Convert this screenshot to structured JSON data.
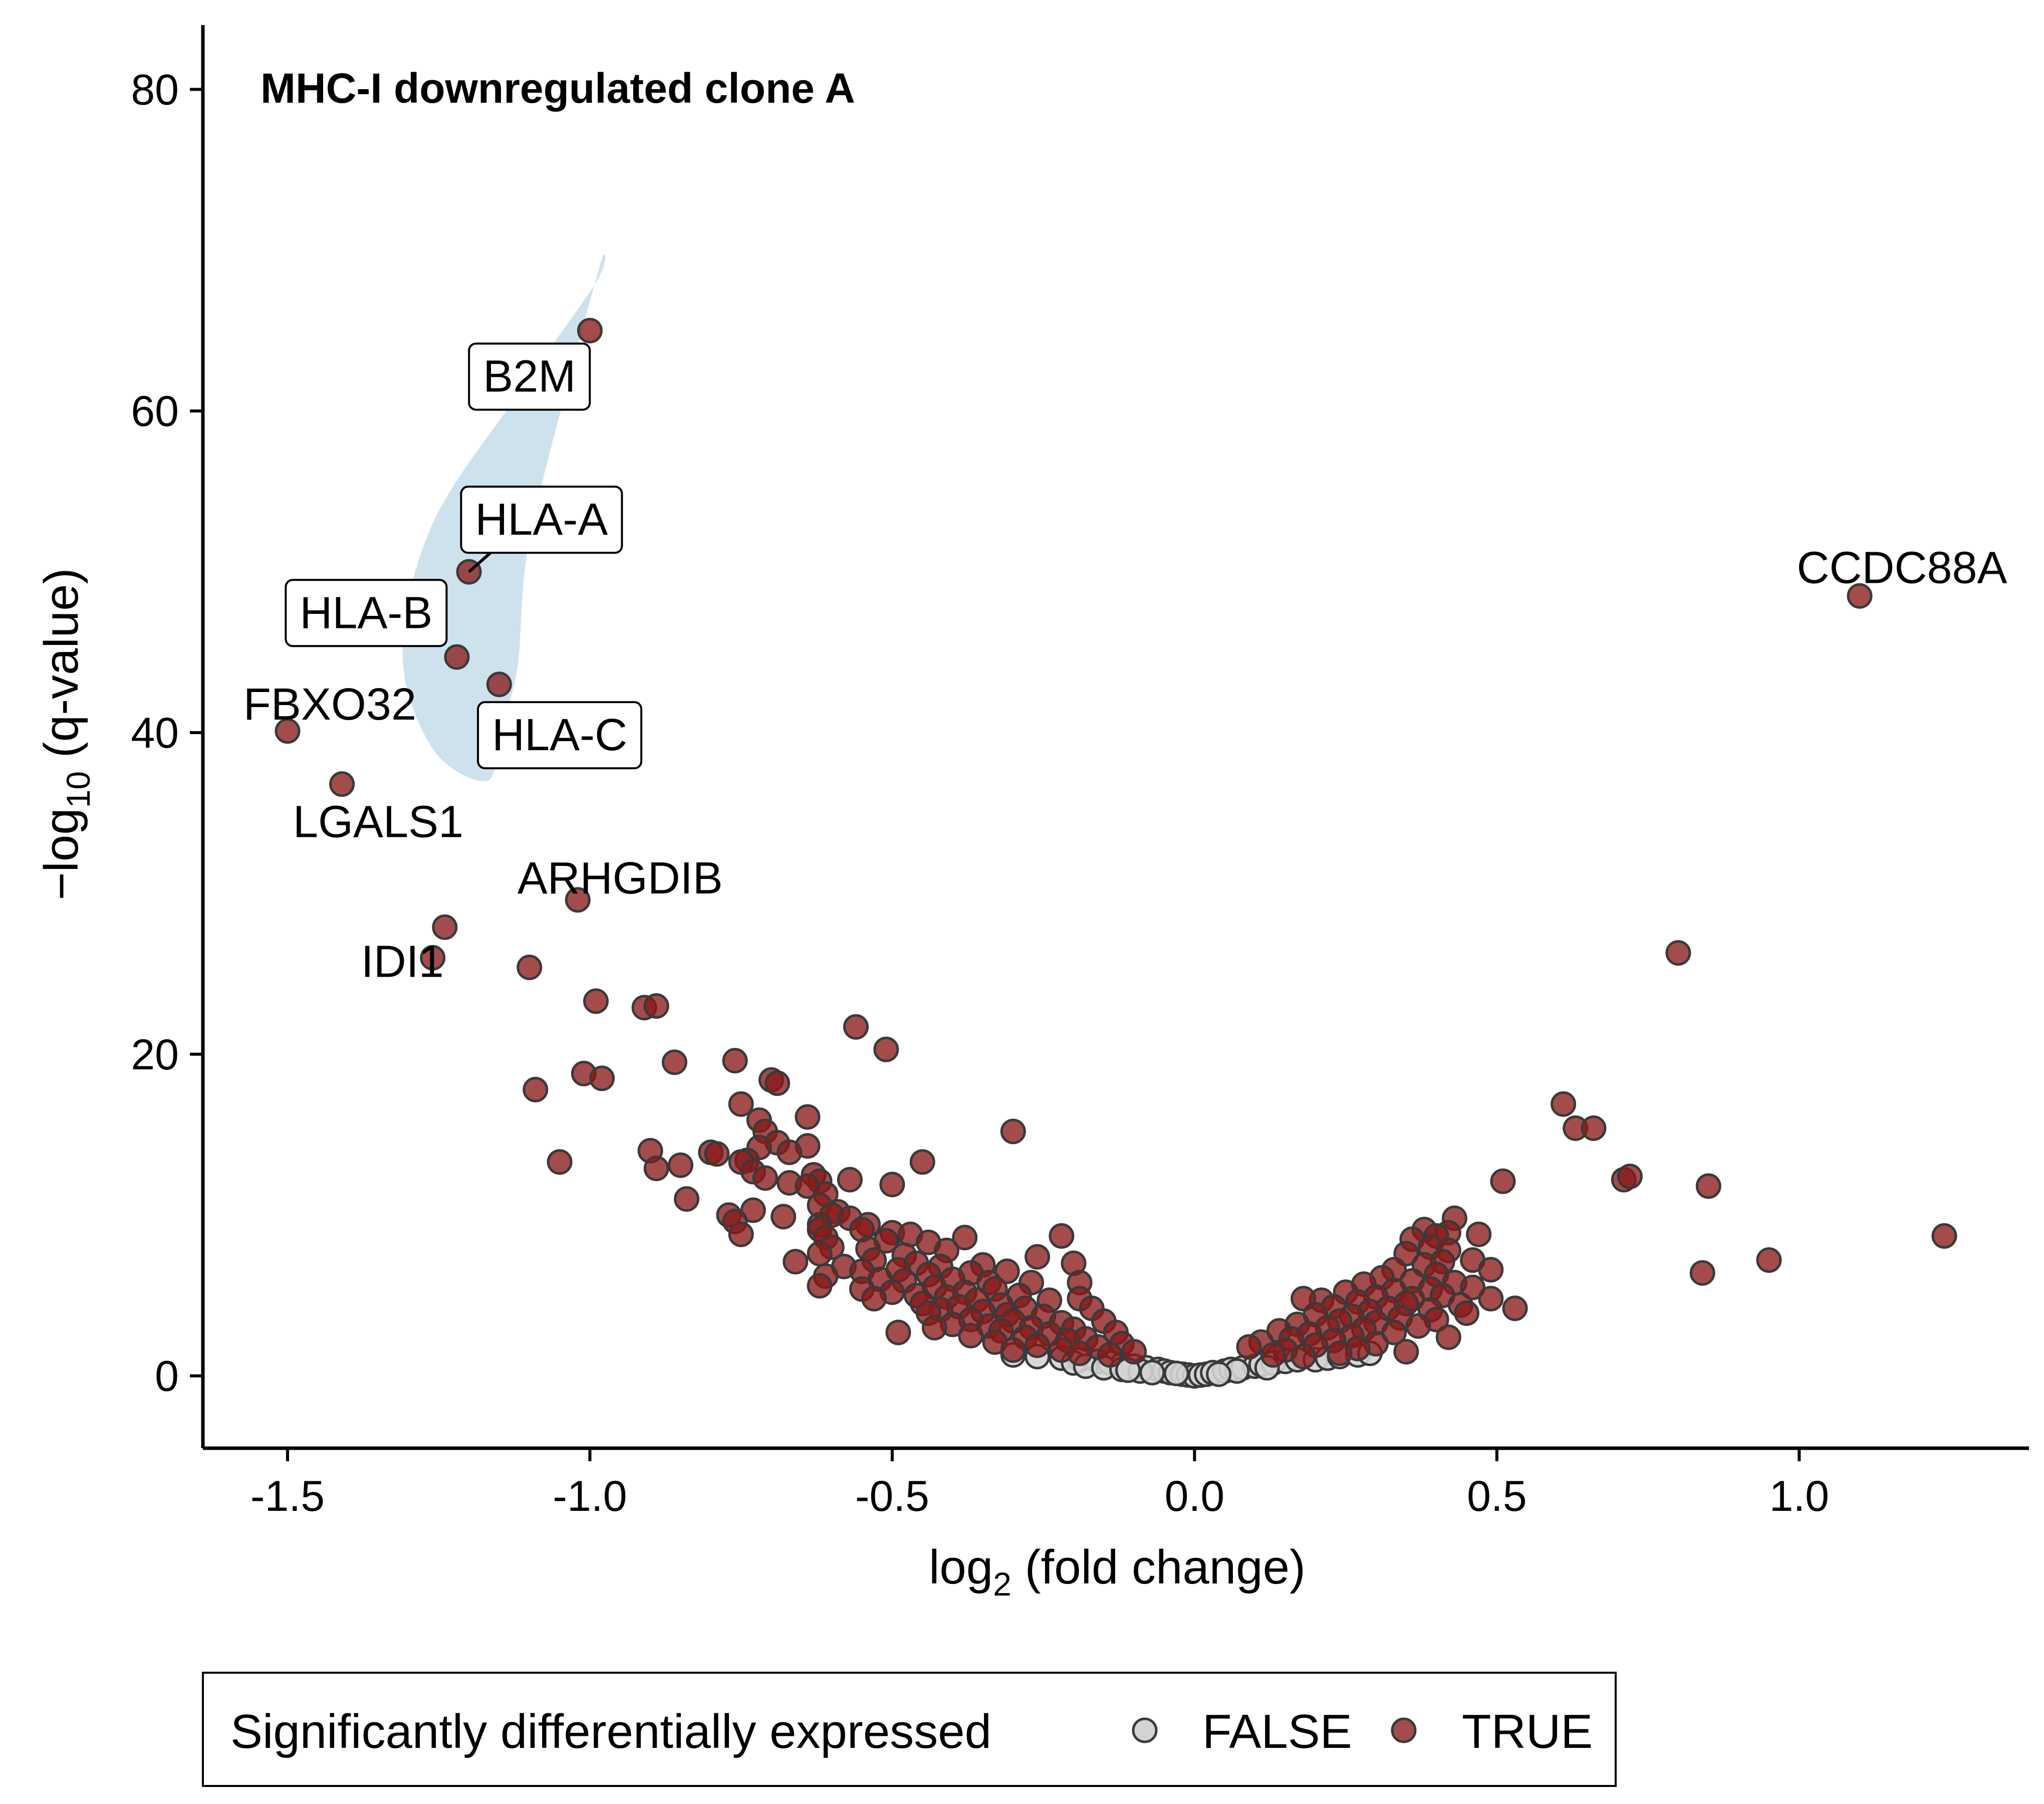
{
  "chart_data": {
    "type": "scatter",
    "title": "MHC-I downregulated clone A",
    "xlabel_parts": {
      "base": "log",
      "sub": "2",
      "rest": " (fold change)"
    },
    "ylabel_parts": {
      "prefix": "−log",
      "sub": "10",
      "rest": " (q-value)"
    },
    "xlim": [
      -1.64,
      1.38
    ],
    "ylim": [
      -4.5,
      84
    ],
    "xticks": [
      -1.5,
      -1.0,
      -0.5,
      0.0,
      0.5,
      1.0
    ],
    "xtick_labels": [
      "-1.5",
      "-1.0",
      "-0.5",
      "0.0",
      "0.5",
      "1.0"
    ],
    "yticks": [
      0,
      20,
      40,
      60,
      80
    ],
    "ytick_labels": [
      "0",
      "20",
      "40",
      "60",
      "80"
    ],
    "grid": false,
    "colors": {
      "TRUE": "#8b1a1a",
      "FALSE": "#d4d4d4",
      "outline": "#3a3a3a",
      "highlight": "#c6ddeb"
    },
    "legend": {
      "position": "bottom",
      "title": "Significantly differentially expressed",
      "entries": [
        "FALSE",
        "TRUE"
      ]
    },
    "highlight_region": [
      [
        -1.17,
        37
      ],
      [
        -1.26,
        39
      ],
      [
        -1.31,
        45
      ],
      [
        -1.26,
        53
      ],
      [
        -1.12,
        61
      ],
      [
        -0.99,
        68
      ],
      [
        -0.98,
        69.5
      ],
      [
        -1.02,
        64
      ],
      [
        -1.1,
        52
      ],
      [
        -1.12,
        44
      ],
      [
        -1.15,
        40
      ]
    ],
    "labeled_points": [
      {
        "gene": "B2M",
        "x": -1.0,
        "y": 65.0,
        "boxed": true,
        "lx": -1.1,
        "ly": 62.2
      },
      {
        "gene": "HLA-A",
        "x": -1.2,
        "y": 50.0,
        "boxed": true,
        "lx": -1.08,
        "ly": 53.3
      },
      {
        "gene": "HLA-B",
        "x": -1.22,
        "y": 44.7,
        "boxed": true,
        "lx": -1.37,
        "ly": 47.5
      },
      {
        "gene": "HLA-C",
        "x": -1.15,
        "y": 43.0,
        "boxed": true,
        "lx": -1.05,
        "ly": 39.9
      },
      {
        "gene": "CCDC88A",
        "x": 1.1,
        "y": 48.5,
        "boxed": false,
        "lx": 1.17,
        "ly": 50.3
      },
      {
        "gene": "FBXO32",
        "x": -1.5,
        "y": 40.1,
        "boxed": false,
        "lx": -1.43,
        "ly": 41.8
      },
      {
        "gene": "LGALS1",
        "x": -1.41,
        "y": 36.8,
        "boxed": false,
        "lx": -1.35,
        "ly": 34.5
      },
      {
        "gene": "ARHGDIB",
        "x": -1.02,
        "y": 29.6,
        "boxed": false,
        "lx": -0.95,
        "ly": 31.0
      },
      {
        "gene": "IDI1",
        "x": -1.26,
        "y": 26.0,
        "boxed": false,
        "lx": -1.31,
        "ly": 25.8
      }
    ],
    "series": [
      {
        "name": "TRUE",
        "points": [
          [
            -1.24,
            27.9
          ],
          [
            -1.1,
            25.4
          ],
          [
            -0.99,
            23.3
          ],
          [
            -0.91,
            22.9
          ],
          [
            -0.89,
            23.0
          ],
          [
            -0.56,
            21.7
          ],
          [
            -0.51,
            20.3
          ],
          [
            -0.76,
            19.6
          ],
          [
            -0.86,
            19.5
          ],
          [
            -1.01,
            18.8
          ],
          [
            -0.98,
            18.5
          ],
          [
            -0.7,
            18.4
          ],
          [
            -1.09,
            17.8
          ],
          [
            -0.69,
            18.2
          ],
          [
            -0.75,
            16.9
          ],
          [
            -0.64,
            16.1
          ],
          [
            -0.72,
            15.9
          ],
          [
            -0.71,
            15.2
          ],
          [
            -0.3,
            15.2
          ],
          [
            -0.69,
            14.5
          ],
          [
            -0.72,
            14.2
          ],
          [
            -0.64,
            14.3
          ],
          [
            -0.9,
            14.0
          ],
          [
            -0.67,
            13.9
          ],
          [
            -0.8,
            13.9
          ],
          [
            -0.79,
            13.8
          ],
          [
            -0.74,
            13.4
          ],
          [
            -1.05,
            13.3
          ],
          [
            -0.45,
            13.3
          ],
          [
            -0.75,
            13.3
          ],
          [
            -0.85,
            13.1
          ],
          [
            -0.89,
            12.9
          ],
          [
            -0.73,
            12.7
          ],
          [
            -0.63,
            12.5
          ],
          [
            -0.71,
            12.3
          ],
          [
            -0.57,
            12.2
          ],
          [
            -0.62,
            12.1
          ],
          [
            -0.67,
            12.0
          ],
          [
            -0.5,
            11.9
          ],
          [
            -0.64,
            11.8
          ],
          [
            -0.61,
            11.3
          ],
          [
            -0.84,
            11.0
          ],
          [
            -0.62,
            10.6
          ],
          [
            -0.73,
            10.3
          ],
          [
            -0.59,
            10.2
          ],
          [
            -0.6,
            10.0
          ],
          [
            -0.68,
            9.9
          ],
          [
            -0.77,
            10.0
          ],
          [
            -0.57,
            9.8
          ],
          [
            -0.62,
            9.4
          ],
          [
            -0.54,
            9.4
          ],
          [
            -0.76,
            9.6
          ],
          [
            -0.55,
            9.1
          ],
          [
            -0.62,
            9.1
          ],
          [
            -0.5,
            8.9
          ],
          [
            -0.47,
            8.8
          ],
          [
            -0.75,
            8.8
          ],
          [
            -0.61,
            8.6
          ],
          [
            -0.38,
            8.6
          ],
          [
            -0.22,
            8.7
          ],
          [
            -0.51,
            8.4
          ],
          [
            -0.44,
            8.3
          ],
          [
            -0.6,
            8.0
          ],
          [
            -0.54,
            7.9
          ],
          [
            -0.41,
            7.8
          ],
          [
            -0.62,
            7.6
          ],
          [
            -0.48,
            7.5
          ],
          [
            -0.26,
            7.4
          ],
          [
            -0.66,
            7.1
          ],
          [
            -0.53,
            7.2
          ],
          [
            -0.46,
            7.0
          ],
          [
            -0.2,
            7.0
          ],
          [
            -0.35,
            6.9
          ],
          [
            -0.42,
            6.8
          ],
          [
            -0.58,
            6.8
          ],
          [
            -0.49,
            6.6
          ],
          [
            -0.55,
            6.5
          ],
          [
            -0.31,
            6.5
          ],
          [
            -0.37,
            6.4
          ],
          [
            -0.44,
            6.3
          ],
          [
            -0.61,
            6.2
          ],
          [
            -0.52,
            6.0
          ],
          [
            -0.4,
            6.0
          ],
          [
            -0.48,
            5.9
          ],
          [
            -0.34,
            5.8
          ],
          [
            -0.27,
            5.8
          ],
          [
            -0.19,
            5.8
          ],
          [
            -0.62,
            5.6
          ],
          [
            -0.43,
            5.5
          ],
          [
            -0.55,
            5.4
          ],
          [
            -0.33,
            5.4
          ],
          [
            -0.5,
            5.2
          ],
          [
            -0.38,
            5.2
          ],
          [
            -0.46,
            5.0
          ],
          [
            -0.29,
            5.0
          ],
          [
            -0.41,
            4.9
          ],
          [
            -0.53,
            4.8
          ],
          [
            -0.36,
            4.7
          ],
          [
            -0.24,
            4.7
          ],
          [
            -0.19,
            4.8
          ],
          [
            -0.45,
            4.5
          ],
          [
            -0.32,
            4.4
          ],
          [
            -0.39,
            4.3
          ],
          [
            -0.28,
            4.2
          ],
          [
            -0.42,
            4.1
          ],
          [
            -0.35,
            4.0
          ],
          [
            -0.17,
            4.2
          ],
          [
            -0.44,
            3.9
          ],
          [
            -0.31,
            3.8
          ],
          [
            -0.25,
            3.7
          ],
          [
            -0.37,
            3.5
          ],
          [
            -0.3,
            3.4
          ],
          [
            -0.22,
            3.3
          ],
          [
            -0.4,
            3.2
          ],
          [
            -0.15,
            3.4
          ],
          [
            -0.34,
            3.1
          ],
          [
            -0.27,
            3.0
          ],
          [
            -0.43,
            3.0
          ],
          [
            -0.49,
            2.7
          ],
          [
            -0.2,
            2.9
          ],
          [
            -0.32,
            2.8
          ],
          [
            -0.13,
            2.7
          ],
          [
            -0.24,
            2.6
          ],
          [
            -0.37,
            2.5
          ],
          [
            -0.28,
            2.4
          ],
          [
            -0.18,
            2.3
          ],
          [
            -0.21,
            2.2
          ],
          [
            -0.33,
            2.1
          ],
          [
            -0.12,
            2.0
          ],
          [
            -0.26,
            1.9
          ],
          [
            -0.16,
            1.8
          ],
          [
            -0.22,
            1.6
          ],
          [
            -0.1,
            1.5
          ],
          [
            -0.3,
            1.6
          ],
          [
            -0.19,
            1.4
          ],
          [
            -0.14,
            1.3
          ],
          [
            0.61,
            16.9
          ],
          [
            0.63,
            15.4
          ],
          [
            0.66,
            15.4
          ],
          [
            0.8,
            26.3
          ],
          [
            0.71,
            12.2
          ],
          [
            0.72,
            12.4
          ],
          [
            0.85,
            11.8
          ],
          [
            0.51,
            12.1
          ],
          [
            0.95,
            7.2
          ],
          [
            0.84,
            6.4
          ],
          [
            1.24,
            8.7
          ],
          [
            0.53,
            4.2
          ],
          [
            0.43,
            9.8
          ],
          [
            0.38,
            9.1
          ],
          [
            0.42,
            8.9
          ],
          [
            0.47,
            8.8
          ],
          [
            0.4,
            8.7
          ],
          [
            0.36,
            8.5
          ],
          [
            0.39,
            8.0
          ],
          [
            0.42,
            7.8
          ],
          [
            0.35,
            7.6
          ],
          [
            0.46,
            7.2
          ],
          [
            0.41,
            7.1
          ],
          [
            0.38,
            6.9
          ],
          [
            0.49,
            6.6
          ],
          [
            0.33,
            6.6
          ],
          [
            0.4,
            6.3
          ],
          [
            0.31,
            6.1
          ],
          [
            0.36,
            5.9
          ],
          [
            0.43,
            5.8
          ],
          [
            0.28,
            5.7
          ],
          [
            0.46,
            5.5
          ],
          [
            0.39,
            5.4
          ],
          [
            0.33,
            5.3
          ],
          [
            0.25,
            5.2
          ],
          [
            0.41,
            5.0
          ],
          [
            0.3,
            4.9
          ],
          [
            0.36,
            4.8
          ],
          [
            0.49,
            4.8
          ],
          [
            0.21,
            4.7
          ],
          [
            0.27,
            4.6
          ],
          [
            0.35,
            4.5
          ],
          [
            0.44,
            4.4
          ],
          [
            0.18,
            4.8
          ],
          [
            0.23,
            4.3
          ],
          [
            0.32,
            4.2
          ],
          [
            0.39,
            4.1
          ],
          [
            0.29,
            4.0
          ],
          [
            0.45,
            3.9
          ],
          [
            0.2,
            3.8
          ],
          [
            0.26,
            3.7
          ],
          [
            0.34,
            3.6
          ],
          [
            0.4,
            3.5
          ],
          [
            0.24,
            3.4
          ],
          [
            0.3,
            3.3
          ],
          [
            0.17,
            3.2
          ],
          [
            0.37,
            3.1
          ],
          [
            0.22,
            3.0
          ],
          [
            0.28,
            2.9
          ],
          [
            0.14,
            2.8
          ],
          [
            0.33,
            2.7
          ],
          [
            0.19,
            2.6
          ],
          [
            0.26,
            2.5
          ],
          [
            0.42,
            2.4
          ],
          [
            0.16,
            2.3
          ],
          [
            0.23,
            2.2
          ],
          [
            0.11,
            2.1
          ],
          [
            0.3,
            2.0
          ],
          [
            0.2,
            1.9
          ],
          [
            0.09,
            1.8
          ],
          [
            0.27,
            1.7
          ],
          [
            0.15,
            1.6
          ],
          [
            0.35,
            1.5
          ],
          [
            0.24,
            1.4
          ],
          [
            0.13,
            1.3
          ],
          [
            0.18,
            1.2
          ]
        ]
      },
      {
        "name": "FALSE",
        "points": [
          [
            -0.3,
            1.3
          ],
          [
            -0.26,
            1.2
          ],
          [
            -0.22,
            1.1
          ],
          [
            -0.19,
            1.0
          ],
          [
            -0.16,
            0.9
          ],
          [
            -0.2,
            0.8
          ],
          [
            -0.14,
            0.8
          ],
          [
            -0.12,
            0.7
          ],
          [
            -0.18,
            0.6
          ],
          [
            -0.1,
            0.6
          ],
          [
            -0.08,
            0.5
          ],
          [
            -0.15,
            0.5
          ],
          [
            -0.06,
            0.4
          ],
          [
            -0.12,
            0.4
          ],
          [
            -0.05,
            0.3
          ],
          [
            -0.09,
            0.3
          ],
          [
            -0.04,
            0.2
          ],
          [
            -0.07,
            0.2
          ],
          [
            -0.02,
            0.1
          ],
          [
            -0.01,
            0.05
          ],
          [
            0.0,
            0.0
          ],
          [
            0.01,
            0.05
          ],
          [
            0.02,
            0.1
          ],
          [
            0.03,
            0.2
          ],
          [
            0.05,
            0.3
          ],
          [
            0.06,
            0.4
          ],
          [
            0.08,
            0.5
          ],
          [
            0.1,
            0.6
          ],
          [
            0.11,
            0.7
          ],
          [
            0.13,
            0.8
          ],
          [
            0.15,
            0.9
          ],
          [
            0.17,
            1.0
          ],
          [
            0.2,
            1.0
          ],
          [
            0.22,
            1.1
          ],
          [
            0.24,
            1.2
          ],
          [
            0.27,
            1.3
          ],
          [
            0.29,
            1.4
          ],
          [
            0.12,
            0.5
          ],
          [
            0.07,
            0.3
          ],
          [
            -0.03,
            0.15
          ],
          [
            0.04,
            0.1
          ],
          [
            -0.11,
            0.35
          ]
        ]
      }
    ]
  }
}
